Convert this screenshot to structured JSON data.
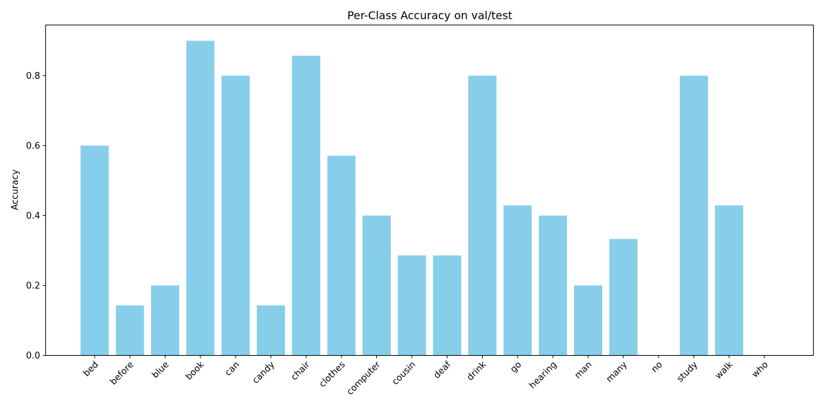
{
  "chart_data": {
    "type": "bar",
    "title": "Per-Class Accuracy on val/test",
    "xlabel": "",
    "ylabel": "Accuracy",
    "categories": [
      "bed",
      "before",
      "blue",
      "book",
      "can",
      "candy",
      "chair",
      "clothes",
      "computer",
      "cousin",
      "deaf",
      "drink",
      "go",
      "hearing",
      "man",
      "many",
      "no",
      "study",
      "walk",
      "who"
    ],
    "values": [
      0.6,
      0.143,
      0.2,
      0.9,
      0.8,
      0.143,
      0.857,
      0.571,
      0.4,
      0.286,
      0.286,
      0.8,
      0.429,
      0.4,
      0.2,
      0.333,
      0.0,
      0.8,
      0.429,
      0.0
    ],
    "ylim": [
      0,
      0.945
    ],
    "yticks": [
      0.0,
      0.2,
      0.4,
      0.6,
      0.8
    ],
    "ytick_labels": [
      "0.0",
      "0.2",
      "0.4",
      "0.6",
      "0.8"
    ],
    "bar_color": "#87ceeb",
    "grid": false,
    "xtick_rotation": "45deg"
  }
}
